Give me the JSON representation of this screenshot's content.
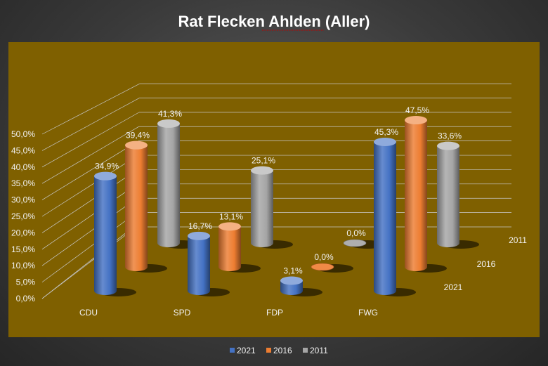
{
  "chart_data": {
    "type": "bar",
    "variant": "3d-cylinder",
    "title": "Rat Flecken Ahlden (Aller)",
    "categories": [
      "CDU",
      "SPD",
      "FDP",
      "FWG"
    ],
    "series": [
      {
        "name": "2021",
        "values": [
          34.9,
          16.7,
          3.1,
          45.3
        ],
        "labels": [
          "34,9%",
          "16,7%",
          "3,1%",
          "45,3%"
        ],
        "color": "#4472c4"
      },
      {
        "name": "2016",
        "values": [
          39.4,
          13.1,
          0.0,
          47.5
        ],
        "labels": [
          "39,4%",
          "13,1%",
          "0,0%",
          "47,5%"
        ],
        "color": "#ed7d31"
      },
      {
        "name": "2011",
        "values": [
          41.3,
          25.1,
          0.0,
          33.6
        ],
        "labels": [
          "41,3%",
          "25,1%",
          "0,0%",
          "33,6%"
        ],
        "color": "#a5a5a5"
      }
    ],
    "yticks": [
      "0,0%",
      "5,0%",
      "10,0%",
      "15,0%",
      "20,0%",
      "25,0%",
      "30,0%",
      "35,0%",
      "40,0%",
      "45,0%",
      "50,0%"
    ],
    "ylim": [
      0,
      50
    ],
    "grid": true,
    "legend": "bottom",
    "floor_color": "#7f6000"
  }
}
